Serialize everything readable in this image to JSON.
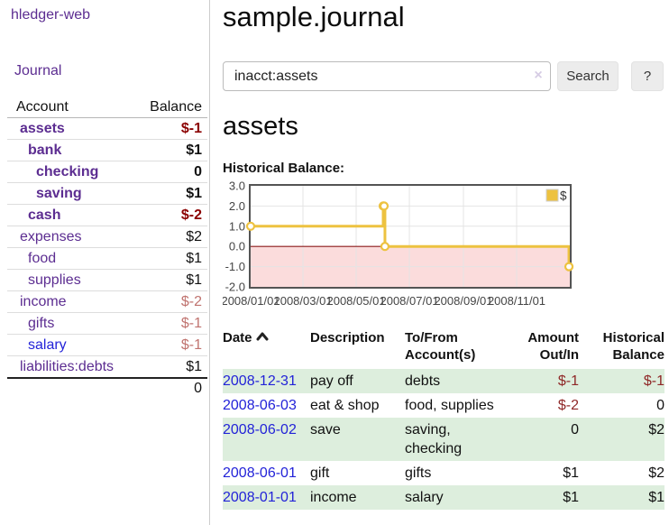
{
  "sidebar": {
    "brand": "hledger-web",
    "nav": {
      "journal_label": "Journal"
    },
    "accounts_table": {
      "col_account": "Account",
      "col_balance": "Balance",
      "rows": [
        {
          "name": "assets",
          "depth": 1,
          "bold": true,
          "balance": "$-1",
          "balance_class": "neg-strong",
          "link_color": "purple"
        },
        {
          "name": "bank",
          "depth": 2,
          "bold": true,
          "balance": "$1",
          "balance_class": "plain",
          "link_color": "purple"
        },
        {
          "name": "checking",
          "depth": 3,
          "bold": true,
          "balance": "0",
          "balance_class": "plain",
          "link_color": "purple"
        },
        {
          "name": "saving",
          "depth": 3,
          "bold": true,
          "balance": "$1",
          "balance_class": "plain",
          "link_color": "purple"
        },
        {
          "name": "cash",
          "depth": 2,
          "bold": true,
          "balance": "$-2",
          "balance_class": "neg-strong",
          "link_color": "purple"
        },
        {
          "name": "expenses",
          "depth": 1,
          "bold": false,
          "balance": "$2",
          "balance_class": "plain",
          "link_color": "purple"
        },
        {
          "name": "food",
          "depth": 2,
          "bold": false,
          "balance": "$1",
          "balance_class": "plain",
          "link_color": "purple"
        },
        {
          "name": "supplies",
          "depth": 2,
          "bold": false,
          "balance": "$1",
          "balance_class": "plain",
          "link_color": "purple"
        },
        {
          "name": "income",
          "depth": 1,
          "bold": false,
          "balance": "$-2",
          "balance_class": "neg-soft",
          "link_color": "purple"
        },
        {
          "name": "gifts",
          "depth": 2,
          "bold": false,
          "balance": "$-1",
          "balance_class": "neg-soft",
          "link_color": "purple"
        },
        {
          "name": "salary",
          "depth": 2,
          "bold": false,
          "balance": "$-1",
          "balance_class": "neg-soft",
          "link_color": "blue"
        },
        {
          "name": "liabilities:debts",
          "depth": 1,
          "bold": false,
          "balance": "$1",
          "balance_class": "plain",
          "link_color": "purple"
        }
      ],
      "total": "0"
    }
  },
  "header": {
    "title": "sample.journal"
  },
  "search": {
    "query": "inacct:assets",
    "clear_icon": "×",
    "search_label": "Search",
    "help_label": "?"
  },
  "account_page": {
    "heading": "assets",
    "chart_label": "Historical Balance:"
  },
  "chart_data": {
    "type": "line",
    "title": "Historical Balance",
    "step": true,
    "x_base": "2008-01-01",
    "x_end": "2009-01-01",
    "ylim": [
      -2,
      3
    ],
    "y_ticks": [
      3.0,
      2.0,
      1.0,
      0.0,
      -1.0,
      -2.0
    ],
    "x_ticks": [
      "2008/01/01",
      "2008/03/01",
      "2008/05/01",
      "2008/07/01",
      "2008/09/01",
      "2008/11/01"
    ],
    "series": [
      {
        "name": "$",
        "color": "#EDC240",
        "points": [
          [
            "2008-01-01",
            1
          ],
          [
            "2008-06-01",
            2
          ],
          [
            "2008-06-02",
            2
          ],
          [
            "2008-06-03",
            0
          ],
          [
            "2008-12-31",
            -1
          ]
        ]
      }
    ],
    "legend_position": "top-right",
    "grid": true,
    "grid_color": "#e4e4e4",
    "border_color": "#545454",
    "tick_label_color": "#444444",
    "negative_region_color": "#fbdcdc",
    "zero_line_color": "#8b1a1a"
  },
  "register": {
    "columns": [
      {
        "lines": [
          "Date"
        ],
        "align": "left",
        "sortable": true
      },
      {
        "lines": [
          "Description"
        ],
        "align": "left"
      },
      {
        "lines": [
          "To/From",
          "Account(s)"
        ],
        "align": "left"
      },
      {
        "lines": [
          "Amount",
          "Out/In"
        ],
        "align": "right"
      },
      {
        "lines": [
          "Historical",
          "Balance"
        ],
        "align": "right"
      }
    ],
    "rows": [
      {
        "date": "2008-12-31",
        "description": "pay off",
        "accounts": "debts",
        "amount": "$-1",
        "amount_class": "neg",
        "balance": "$-1",
        "balance_class": "neg",
        "green": true
      },
      {
        "date": "2008-06-03",
        "description": "eat & shop",
        "accounts": "food, supplies",
        "amount": "$-2",
        "amount_class": "neg",
        "balance": "0",
        "balance_class": "plain",
        "green": false
      },
      {
        "date": "2008-06-02",
        "description": "save",
        "accounts": "saving, checking",
        "amount": "0",
        "amount_class": "plain",
        "balance": "$2",
        "balance_class": "plain",
        "green": true
      },
      {
        "date": "2008-06-01",
        "description": "gift",
        "accounts": "gifts",
        "amount": "$1",
        "amount_class": "plain",
        "balance": "$2",
        "balance_class": "plain",
        "green": false
      },
      {
        "date": "2008-01-01",
        "description": "income",
        "accounts": "salary",
        "amount": "$1",
        "amount_class": "plain",
        "balance": "$1",
        "balance_class": "plain",
        "green": true
      }
    ]
  }
}
